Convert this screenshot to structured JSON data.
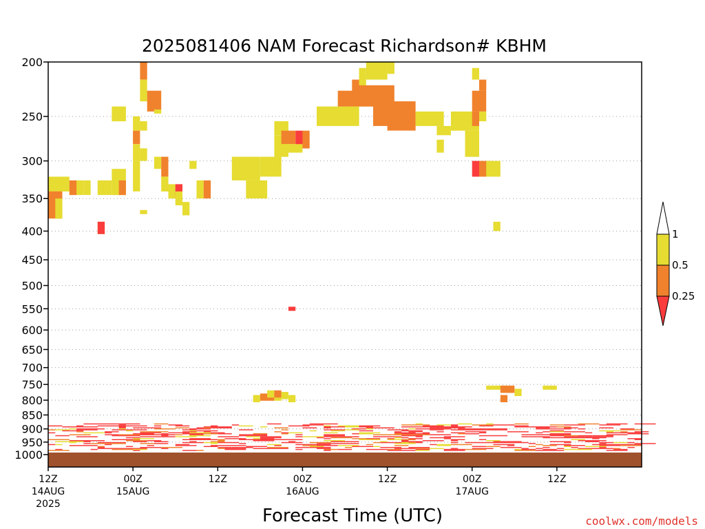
{
  "chart_data": {
    "type": "heatmap",
    "title": "2025081406 NAM Forecast Richardson# KBHM",
    "xlabel": "Forecast Time (UTC)",
    "ylabel": "",
    "credit": "coolwx.com/models",
    "run_start_hour": 6,
    "forecast_hours": 84,
    "y_scale": "log-pressure",
    "ylim": [
      1000,
      200
    ],
    "grid": "horizontal dotted",
    "y_ticks": [
      "200",
      "250",
      "300",
      "350",
      "400",
      "450",
      "500",
      "550",
      "600",
      "650",
      "700",
      "750",
      "800",
      "850",
      "900",
      "950",
      "1000"
    ],
    "x_ticks": [
      {
        "hour": 6,
        "lines": [
          "12Z",
          "14AUG",
          "2025"
        ]
      },
      {
        "hour": 18,
        "lines": [
          "00Z",
          "15AUG"
        ]
      },
      {
        "hour": 30,
        "lines": [
          "12Z"
        ]
      },
      {
        "hour": 42,
        "lines": [
          "00Z",
          "16AUG"
        ]
      },
      {
        "hour": 54,
        "lines": [
          "12Z"
        ]
      },
      {
        "hour": 66,
        "lines": [
          "00Z",
          "17AUG"
        ]
      },
      {
        "hour": 78,
        "lines": [
          "12Z"
        ]
      }
    ],
    "colorbar": {
      "levels": [
        "1",
        "0.5",
        "0.25"
      ],
      "bins": [
        {
          "range": "0.5-1",
          "color": "#e6dc32"
        },
        {
          "range": "0.25-0.5",
          "color": "#f0822d"
        },
        {
          "range": "<0.25",
          "color": "#fa3c3c"
        }
      ],
      "placement": "right"
    },
    "ground_color": "#a0522d",
    "colors": {
      "1": "#e6dc32",
      "2": "#f0822d",
      "3": "#fa3c3c"
    },
    "cells": [
      [
        0,
        3,
        320,
        340,
        1
      ],
      [
        0,
        2,
        340,
        380,
        2
      ],
      [
        1,
        2,
        350,
        380,
        1
      ],
      [
        3,
        5,
        325,
        345,
        1
      ],
      [
        3,
        4,
        325,
        345,
        2
      ],
      [
        5,
        6,
        325,
        345,
        1
      ],
      [
        7,
        9,
        325,
        345,
        1
      ],
      [
        9,
        11,
        325,
        345,
        1
      ],
      [
        7,
        8,
        385,
        405,
        1
      ],
      [
        7,
        8,
        385,
        405,
        3
      ],
      [
        9,
        11,
        240,
        255,
        1
      ],
      [
        9,
        11,
        310,
        345,
        1
      ],
      [
        10,
        11,
        325,
        345,
        2
      ],
      [
        13,
        14,
        200,
        215,
        2
      ],
      [
        13,
        14,
        215,
        235,
        1
      ],
      [
        14,
        16,
        225,
        245,
        2
      ],
      [
        15,
        16,
        245,
        245,
        1
      ],
      [
        12,
        13,
        250,
        265,
        1
      ],
      [
        12,
        13,
        265,
        280,
        2
      ],
      [
        12,
        13,
        280,
        300,
        1
      ],
      [
        13,
        14,
        255,
        265,
        1
      ],
      [
        13,
        14,
        285,
        300,
        1
      ],
      [
        12,
        13,
        300,
        340,
        1
      ],
      [
        13,
        14,
        370,
        370,
        1
      ],
      [
        15,
        16,
        295,
        310,
        1
      ],
      [
        16,
        17,
        295,
        320,
        2
      ],
      [
        16,
        17,
        320,
        340,
        1
      ],
      [
        17,
        18,
        330,
        350,
        1
      ],
      [
        18,
        18,
        330,
        350,
        3
      ],
      [
        18,
        19,
        340,
        360,
        1
      ],
      [
        19,
        20,
        355,
        375,
        1
      ],
      [
        20,
        21,
        300,
        310,
        1
      ],
      [
        21,
        22,
        325,
        350,
        1
      ],
      [
        22,
        23,
        325,
        350,
        2
      ],
      [
        26,
        30,
        295,
        325,
        1
      ],
      [
        28,
        31,
        325,
        350,
        1
      ],
      [
        30,
        33,
        295,
        320,
        1
      ],
      [
        32,
        34,
        270,
        295,
        1
      ],
      [
        32,
        34,
        255,
        270,
        1
      ],
      [
        33,
        35,
        265,
        280,
        2
      ],
      [
        35,
        36,
        265,
        285,
        3
      ],
      [
        36,
        37,
        265,
        285,
        2
      ],
      [
        33,
        36,
        280,
        290,
        1
      ],
      [
        38,
        44,
        240,
        260,
        1
      ],
      [
        41,
        46,
        230,
        240,
        1
      ],
      [
        41,
        46,
        225,
        240,
        2
      ],
      [
        43,
        44,
        215,
        235,
        2
      ],
      [
        44,
        45,
        205,
        225,
        1
      ],
      [
        45,
        48,
        200,
        215,
        1
      ],
      [
        48,
        49,
        200,
        210,
        1
      ],
      [
        44,
        49,
        220,
        240,
        2
      ],
      [
        46,
        52,
        235,
        260,
        2
      ],
      [
        48,
        52,
        250,
        265,
        2
      ],
      [
        52,
        56,
        245,
        260,
        1
      ],
      [
        55,
        57,
        260,
        270,
        1
      ],
      [
        55,
        56,
        275,
        290,
        1
      ],
      [
        57,
        61,
        245,
        265,
        1
      ],
      [
        59,
        61,
        265,
        295,
        1
      ],
      [
        60,
        61,
        245,
        260,
        2
      ],
      [
        60,
        61,
        205,
        215,
        1
      ],
      [
        61,
        62,
        215,
        225,
        2
      ],
      [
        60,
        62,
        225,
        245,
        2
      ],
      [
        61,
        62,
        245,
        255,
        1
      ],
      [
        60,
        61,
        300,
        320,
        3
      ],
      [
        61,
        63,
        300,
        320,
        2
      ],
      [
        62,
        63,
        300,
        320,
        1
      ],
      [
        63,
        64,
        300,
        320,
        1
      ],
      [
        63,
        64,
        385,
        400,
        1
      ],
      [
        34,
        35,
        550,
        550,
        3
      ],
      [
        62,
        65,
        760,
        760,
        1
      ],
      [
        64,
        66,
        760,
        770,
        2
      ],
      [
        66,
        67,
        770,
        780,
        1
      ],
      [
        64,
        65,
        790,
        800,
        2
      ],
      [
        29,
        30,
        790,
        800,
        1
      ],
      [
        30,
        32,
        785,
        795,
        2
      ],
      [
        32,
        33,
        785,
        795,
        1
      ],
      [
        31,
        32,
        775,
        785,
        1
      ],
      [
        32,
        33,
        775,
        785,
        2
      ],
      [
        33,
        34,
        780,
        790,
        1
      ],
      [
        34,
        35,
        790,
        800,
        1
      ],
      [
        70,
        72,
        760,
        760,
        1
      ]
    ],
    "near_surface_rows": 28,
    "near_surface_seed": 20250814
  }
}
